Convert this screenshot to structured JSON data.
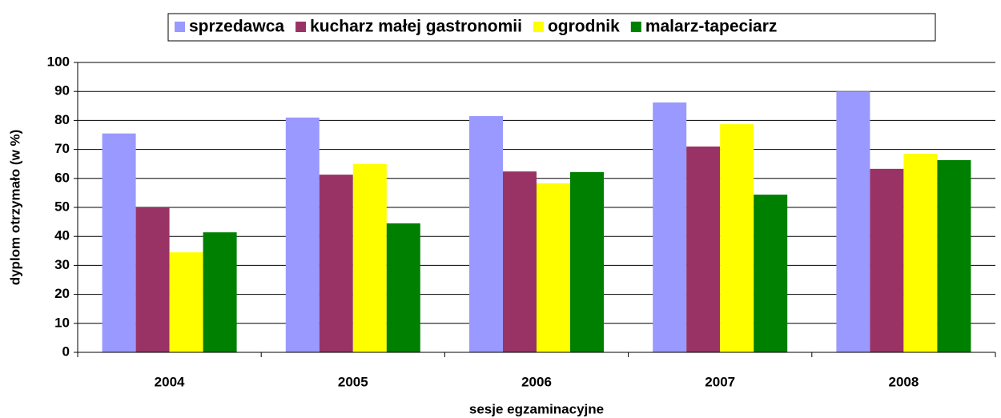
{
  "chart_data": {
    "type": "bar",
    "x_label": "sesje egzaminacyjne",
    "y_label": "dyplom otrzymało (w %)",
    "categories": [
      "2004",
      "2005",
      "2006",
      "2007",
      "2008"
    ],
    "series": [
      {
        "name": "sprzedawca",
        "color": "#9999ff",
        "values": [
          75.5,
          81,
          81.5,
          86.2,
          90
        ]
      },
      {
        "name": "kucharz małej gastronomii",
        "color": "#993366",
        "values": [
          50,
          61.3,
          62.4,
          71,
          63.3
        ]
      },
      {
        "name": "ogrodnik",
        "color": "#ffff00",
        "values": [
          34.5,
          65,
          58.3,
          78.7,
          68.5
        ]
      },
      {
        "name": "malarz-tapeciarz",
        "color": "#008000",
        "values": [
          41.4,
          44.5,
          62.2,
          54.4,
          66.3
        ]
      }
    ],
    "ylim": [
      0,
      100
    ],
    "yticks": [
      0,
      10,
      20,
      30,
      40,
      50,
      60,
      70,
      80,
      90,
      100
    ],
    "grid": true,
    "legend": "top"
  }
}
